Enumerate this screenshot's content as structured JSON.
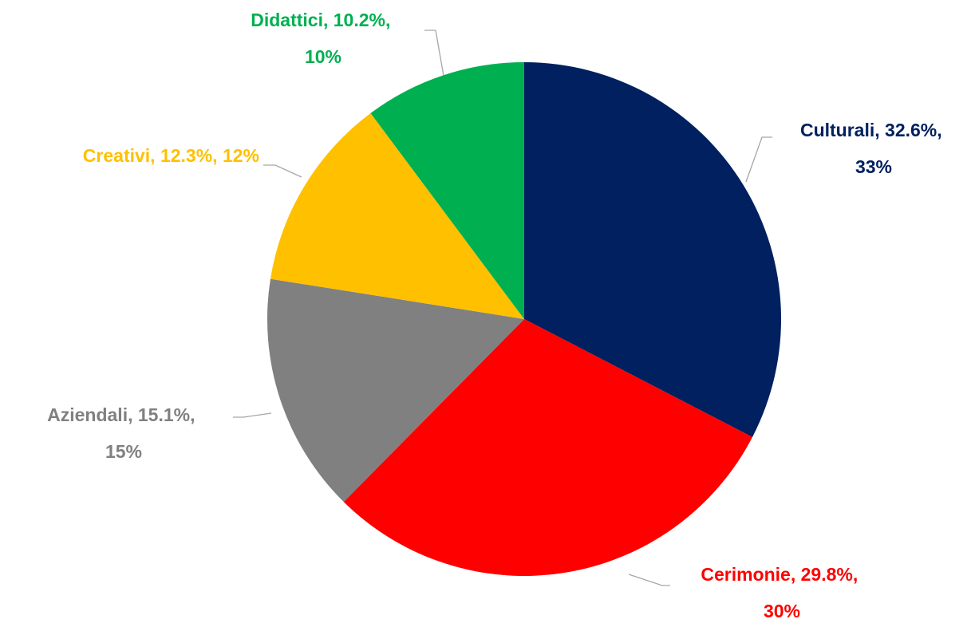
{
  "chart_data": {
    "type": "pie",
    "categories": [
      "Culturali",
      "Cerimonie",
      "Aziendali",
      "Creativi",
      "Didattici"
    ],
    "values": [
      32.6,
      29.8,
      15.1,
      12.3,
      10.2
    ],
    "value_labels": [
      "32.6%",
      "29.8%",
      "15.1%",
      "12.3%",
      "10.2%"
    ],
    "percent_labels": [
      "33%",
      "30%",
      "15%",
      "12%",
      "10%"
    ],
    "label_separator": ", ",
    "colors": [
      "#002060",
      "#ff0000",
      "#808080",
      "#ffc000",
      "#00b050"
    ]
  }
}
